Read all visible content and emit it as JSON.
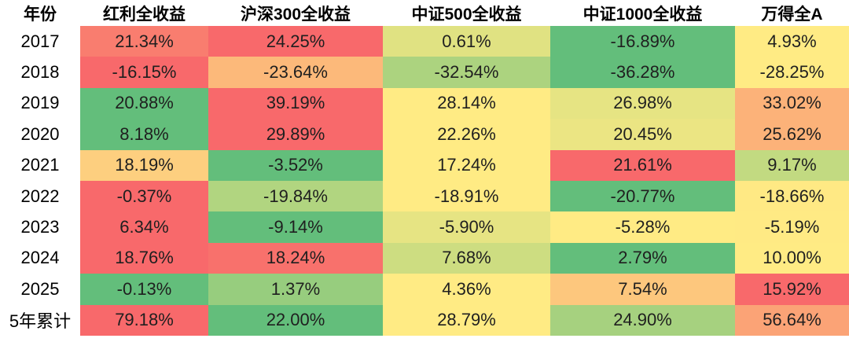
{
  "chart_data": {
    "type": "table",
    "title": "",
    "row_label_header": "年份",
    "columns": [
      "红利全收益",
      "沪深300全收益",
      "中证500全收益",
      "中证1000全收益",
      "万得全A"
    ],
    "rows": [
      {
        "label": "2017",
        "values": [
          21.34,
          24.25,
          0.61,
          -16.89,
          4.93
        ]
      },
      {
        "label": "2018",
        "values": [
          -16.15,
          -23.64,
          -32.54,
          -36.28,
          -28.25
        ]
      },
      {
        "label": "2019",
        "values": [
          20.88,
          39.19,
          28.14,
          26.98,
          33.02
        ]
      },
      {
        "label": "2020",
        "values": [
          8.18,
          29.89,
          22.26,
          20.45,
          25.62
        ]
      },
      {
        "label": "2021",
        "values": [
          18.19,
          -3.52,
          17.24,
          21.61,
          9.17
        ]
      },
      {
        "label": "2022",
        "values": [
          -0.37,
          -19.84,
          -18.91,
          -20.77,
          -18.66
        ]
      },
      {
        "label": "2023",
        "values": [
          6.34,
          -9.14,
          -5.9,
          -5.28,
          -5.19
        ]
      },
      {
        "label": "2024",
        "values": [
          18.76,
          18.24,
          7.68,
          2.79,
          10.0
        ]
      },
      {
        "label": "2025",
        "values": [
          -0.13,
          1.37,
          4.36,
          7.54,
          15.92
        ]
      },
      {
        "label": "5年累计",
        "values": [
          79.18,
          22.0,
          28.79,
          24.9,
          56.64
        ]
      }
    ],
    "value_suffix": "%",
    "value_decimals": 2,
    "heat_scale": {
      "min_color": "#63BE7B",
      "mid_color": "#FFEB84",
      "max_color": "#F8696B",
      "rule": "per-row 3-color scale: row minimum = green, row median = yellow, row maximum = red"
    },
    "layout": {
      "grid": "off",
      "legend": "none"
    }
  }
}
